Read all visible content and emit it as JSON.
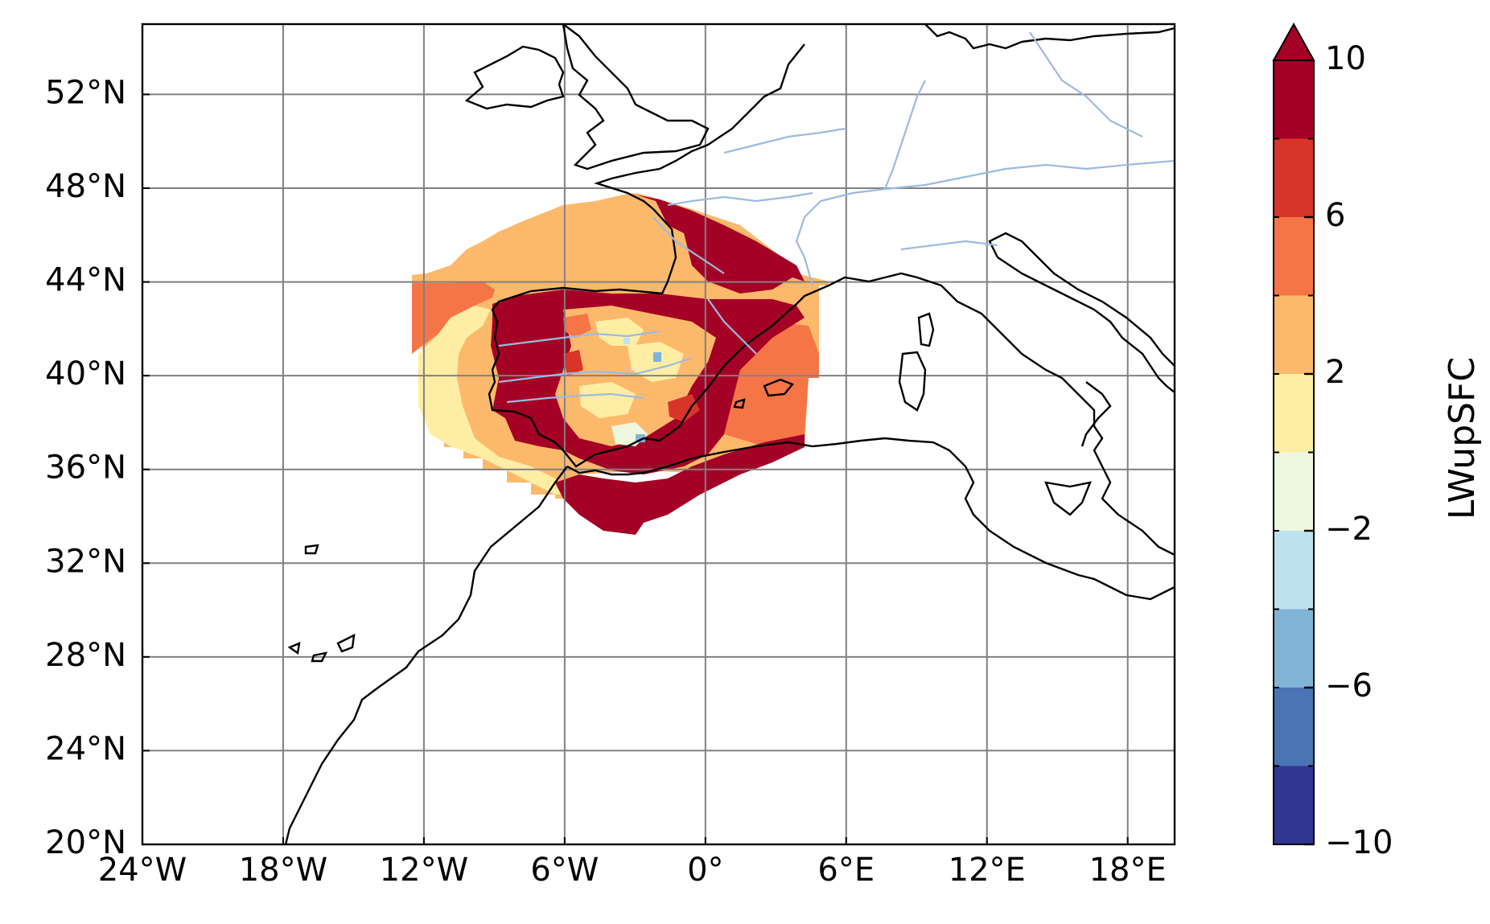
{
  "map": {
    "lon_range": [
      -24,
      20
    ],
    "lat_range": [
      20,
      55
    ],
    "lon_ticks": [
      {
        "value": -24,
        "label": "24°W"
      },
      {
        "value": -18,
        "label": "18°W"
      },
      {
        "value": -12,
        "label": "12°W"
      },
      {
        "value": -6,
        "label": "6°W"
      },
      {
        "value": 0,
        "label": "0°"
      },
      {
        "value": 6,
        "label": "6°E"
      },
      {
        "value": 12,
        "label": "12°E"
      },
      {
        "value": 18,
        "label": "18°E"
      }
    ],
    "lat_ticks": [
      {
        "value": 20,
        "label": "20°N"
      },
      {
        "value": 24,
        "label": "24°N"
      },
      {
        "value": 28,
        "label": "28°N"
      },
      {
        "value": 32,
        "label": "32°N"
      },
      {
        "value": 36,
        "label": "36°N"
      },
      {
        "value": 40,
        "label": "40°N"
      },
      {
        "value": 44,
        "label": "44°N"
      },
      {
        "value": 48,
        "label": "48°N"
      },
      {
        "value": 52,
        "label": "52°N"
      }
    ],
    "grid": true,
    "colors": {
      "coastline": "#000000",
      "rivers": "#9bbbe0",
      "grid": "#808080"
    }
  },
  "colorbar": {
    "label": "LWupSFC",
    "range": [
      -10,
      10
    ],
    "extend": "max",
    "tick_labels": [
      {
        "value": 10,
        "label": "10"
      },
      {
        "value": 6,
        "label": "6"
      },
      {
        "value": 2,
        "label": "2"
      },
      {
        "value": -2,
        "label": "−2"
      },
      {
        "value": -6,
        "label": "−6"
      },
      {
        "value": -10,
        "label": "−10"
      }
    ],
    "levels": [
      -10,
      -8,
      -6,
      -4,
      -2,
      0,
      2,
      4,
      6,
      8,
      10
    ],
    "colors": [
      "#313695",
      "#4a74b4",
      "#80b3d6",
      "#bde2ee",
      "#eef7e0",
      "#feeea4",
      "#fdb96b",
      "#f57547",
      "#d83429",
      "#a50026"
    ]
  }
}
